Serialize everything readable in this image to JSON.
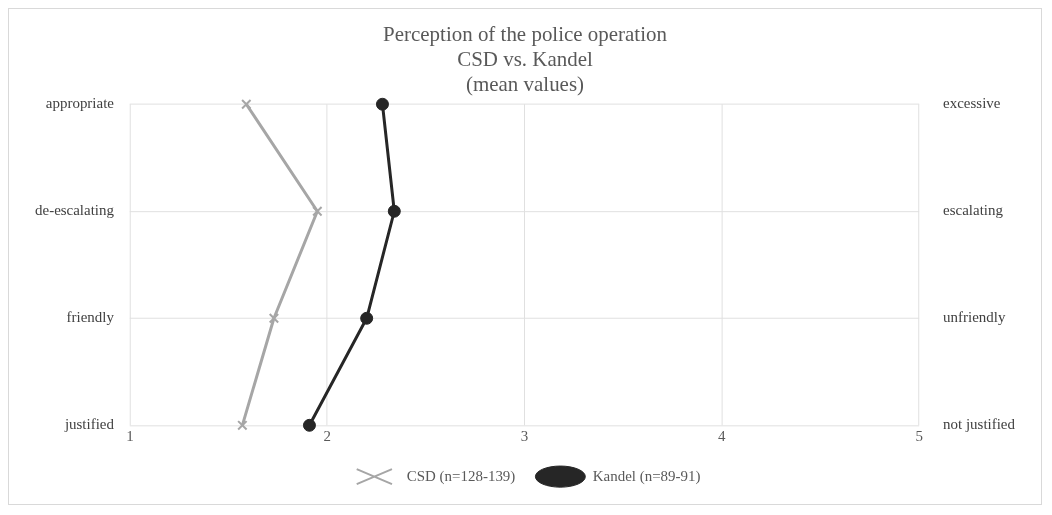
{
  "chart_data": {
    "type": "line",
    "orientation": "horizontal",
    "title": "Perception of the police operation\nCSD vs. Kandel\n(mean values)",
    "categories": [
      "appropriate",
      "de-escalating",
      "friendly",
      "justified"
    ],
    "y2_categories": [
      "excessive",
      "escalating",
      "unfriendly",
      "not justified"
    ],
    "xlim": [
      1,
      5
    ],
    "xticks": [
      1,
      2,
      3,
      4,
      5
    ],
    "grid": true,
    "legend": "bottom",
    "series": [
      {
        "name": "CSD (n=128-139)",
        "color": "#a6a6a6",
        "marker": "cross",
        "values": [
          1.59,
          1.95,
          1.73,
          1.57
        ]
      },
      {
        "name": "Kandel (n=89-91)",
        "color": "#262626",
        "marker": "circle",
        "values": [
          2.28,
          2.34,
          2.2,
          1.91
        ]
      }
    ]
  }
}
